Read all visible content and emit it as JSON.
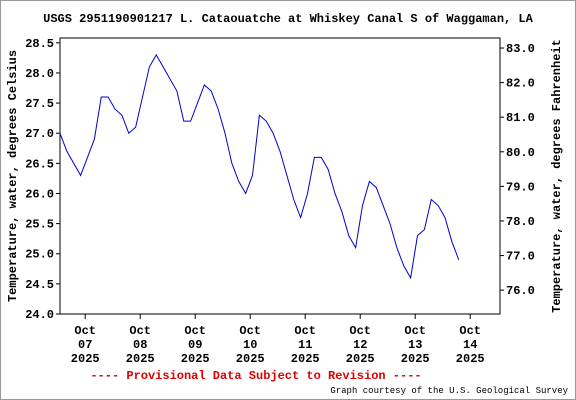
{
  "chart_data": {
    "type": "line",
    "title": "USGS 2951190901217 L. Cataouatche at Whiskey Canal S of Waggaman, LA",
    "y_label": "Temperature, water, degrees Celsius",
    "y2_label": "Temperature, water, degrees Fahrenheit",
    "note": "---- Provisional Data Subject to Revision ----",
    "credit": "Graph courtesy of the U.S. Geological Survey",
    "xlim": [
      "2025-10-06T13:00",
      "2025-10-14T13:00"
    ],
    "xticks": [
      {
        "value": "2025-10-07T00:00",
        "label": "Oct 07 2025"
      },
      {
        "value": "2025-10-08T00:00",
        "label": "Oct 08 2025"
      },
      {
        "value": "2025-10-09T00:00",
        "label": "Oct 09 2025"
      },
      {
        "value": "2025-10-10T00:00",
        "label": "Oct 10 2025"
      },
      {
        "value": "2025-10-11T00:00",
        "label": "Oct 11 2025"
      },
      {
        "value": "2025-10-12T00:00",
        "label": "Oct 12 2025"
      },
      {
        "value": "2025-10-13T00:00",
        "label": "Oct 13 2025"
      },
      {
        "value": "2025-10-14T00:00",
        "label": "Oct 14 2025"
      }
    ],
    "ylim": [
      24,
      28.58
    ],
    "yticks": [
      {
        "value": 24,
        "label": "24.0"
      },
      24.5,
      {
        "value": 25,
        "label": "25.0"
      },
      25.5,
      {
        "value": 26,
        "label": "26.0"
      },
      26.5,
      {
        "value": 27,
        "label": "27.0"
      },
      27.5,
      {
        "value": 28,
        "label": "28.0"
      },
      28.5
    ],
    "y2lim": [
      75.31,
      83.29
    ],
    "y2ticks": [
      {
        "value": 76,
        "label": "76.0"
      },
      {
        "value": 77,
        "label": "77.0"
      },
      {
        "value": 78,
        "label": "78.0"
      },
      {
        "value": 79,
        "label": "79.0"
      },
      {
        "value": 80,
        "label": "80.0"
      },
      {
        "value": 81,
        "label": "81.0"
      },
      {
        "value": 82,
        "label": "82.0"
      },
      {
        "value": 83,
        "label": "83.0"
      }
    ],
    "x": [
      "2025-10-06T13:00",
      "2025-10-06T16:00",
      "2025-10-06T19:00",
      "2025-10-06T22:00",
      "2025-10-07T01:00",
      "2025-10-07T04:00",
      "2025-10-07T07:00",
      "2025-10-07T10:00",
      "2025-10-07T13:00",
      "2025-10-07T16:00",
      "2025-10-07T19:00",
      "2025-10-07T22:00",
      "2025-10-08T01:00",
      "2025-10-08T04:00",
      "2025-10-08T07:00",
      "2025-10-08T10:00",
      "2025-10-08T13:00",
      "2025-10-08T16:00",
      "2025-10-08T19:00",
      "2025-10-08T22:00",
      "2025-10-09T01:00",
      "2025-10-09T04:00",
      "2025-10-09T07:00",
      "2025-10-09T10:00",
      "2025-10-09T13:00",
      "2025-10-09T16:00",
      "2025-10-09T19:00",
      "2025-10-09T22:00",
      "2025-10-10T01:00",
      "2025-10-10T04:00",
      "2025-10-10T07:00",
      "2025-10-10T10:00",
      "2025-10-10T13:00",
      "2025-10-10T16:00",
      "2025-10-10T19:00",
      "2025-10-10T22:00",
      "2025-10-11T01:00",
      "2025-10-11T04:00",
      "2025-10-11T07:00",
      "2025-10-11T10:00",
      "2025-10-11T13:00",
      "2025-10-11T16:00",
      "2025-10-11T19:00",
      "2025-10-11T22:00",
      "2025-10-12T01:00",
      "2025-10-12T04:00",
      "2025-10-12T07:00",
      "2025-10-12T10:00",
      "2025-10-12T13:00",
      "2025-10-12T16:00",
      "2025-10-12T19:00",
      "2025-10-12T22:00",
      "2025-10-13T01:00",
      "2025-10-13T04:00",
      "2025-10-13T07:00",
      "2025-10-13T10:00",
      "2025-10-13T13:00",
      "2025-10-13T16:00",
      "2025-10-13T19:00"
    ],
    "series": [
      {
        "color": "#0000cc",
        "values": [
          27.0,
          26.7,
          26.5,
          26.3,
          26.6,
          26.9,
          27.6,
          27.6,
          27.4,
          27.3,
          27.0,
          27.1,
          27.6,
          28.1,
          28.3,
          28.1,
          27.9,
          27.7,
          27.2,
          27.2,
          27.5,
          27.8,
          27.7,
          27.4,
          27.0,
          26.5,
          26.2,
          26.0,
          26.3,
          27.3,
          27.2,
          27.0,
          26.7,
          26.3,
          25.9,
          25.6,
          26.0,
          26.6,
          26.6,
          26.4,
          26.0,
          25.7,
          25.3,
          25.1,
          25.8,
          26.2,
          26.1,
          25.8,
          25.5,
          25.1,
          24.8,
          24.6,
          25.3,
          25.4,
          25.9,
          25.8,
          25.6,
          25.2,
          24.9
        ]
      }
    ]
  }
}
